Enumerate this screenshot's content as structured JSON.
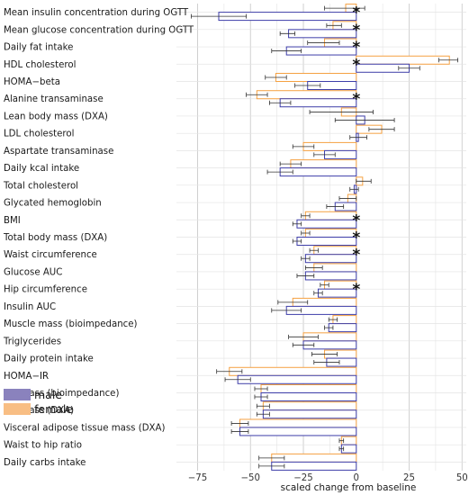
{
  "chart_data": {
    "type": "bar",
    "orientation": "horizontal",
    "xlabel": "scaled change from baseline",
    "xlim": [
      -85,
      52
    ],
    "xticks": [
      -75,
      -50,
      -25,
      0,
      25,
      50
    ],
    "xtick_labels": [
      "−75",
      "−50",
      "−25",
      "0",
      "25",
      "50"
    ],
    "grid": true,
    "significance_marker": "*",
    "legend": {
      "placement": "bottom-left"
    },
    "series": [
      {
        "name": "male",
        "color": "#3d3da8",
        "fill": "#ffffff"
      },
      {
        "name": "female",
        "color": "#f5a142",
        "fill": "#ffffff"
      }
    ],
    "categories": [
      {
        "label": "Mean insulin concentration during OGTT",
        "female": -5,
        "female_err": [
          -15,
          4
        ],
        "male": -65,
        "male_err": [
          -78,
          -52
        ],
        "sig": true
      },
      {
        "label": "Mean glucose concentration during OGTT",
        "female": -11,
        "female_err": [
          -14,
          -7
        ],
        "male": -32,
        "male_err": [
          -36,
          -29
        ],
        "sig": true
      },
      {
        "label": "Daily fat intake",
        "female": -15,
        "female_err": [
          -23,
          -8
        ],
        "male": -33,
        "male_err": [
          -40,
          -26
        ],
        "sig": true
      },
      {
        "label": "HDL cholesterol",
        "female": 44,
        "female_err": [
          39,
          48
        ],
        "male": 25,
        "male_err": [
          20,
          30
        ],
        "sig": true
      },
      {
        "label": "HOMA−beta",
        "female": -38,
        "female_err": [
          -43,
          -33
        ],
        "male": -23,
        "male_err": [
          -29,
          -17
        ],
        "sig": false
      },
      {
        "label": "Alanine transaminase",
        "female": -47,
        "female_err": [
          -52,
          -42
        ],
        "male": -36,
        "male_err": [
          -41,
          -31
        ],
        "sig": true
      },
      {
        "label": "Lean body mass (DXA)",
        "female": -7,
        "female_err": [
          -22,
          8
        ],
        "male": 4,
        "male_err": [
          -10,
          18
        ],
        "sig": false
      },
      {
        "label": "LDL cholesterol",
        "female": 12,
        "female_err": [
          6,
          18
        ],
        "male": 1,
        "male_err": [
          -3,
          5
        ],
        "sig": false
      },
      {
        "label": "Aspartate transaminase",
        "female": -25,
        "female_err": [
          -30,
          -20
        ],
        "male": -15,
        "male_err": [
          -20,
          -10
        ],
        "sig": false
      },
      {
        "label": "Daily kcal intake",
        "female": -31,
        "female_err": [
          -36,
          -26
        ],
        "male": -36,
        "male_err": [
          -42,
          -30
        ],
        "sig": false
      },
      {
        "label": "Total cholesterol",
        "female": 3,
        "female_err": [
          0,
          7
        ],
        "male": -1,
        "male_err": [
          -3,
          1
        ],
        "sig": false
      },
      {
        "label": "Glycated hemoglobin",
        "female": -4,
        "female_err": [
          -8,
          0
        ],
        "male": -10,
        "male_err": [
          -14,
          -6
        ],
        "sig": false
      },
      {
        "label": "BMI",
        "female": -24,
        "female_err": [
          -26,
          -22
        ],
        "male": -28,
        "male_err": [
          -30,
          -26
        ],
        "sig": true
      },
      {
        "label": "Total body mass (DXA)",
        "female": -24,
        "female_err": [
          -26,
          -22
        ],
        "male": -28,
        "male_err": [
          -30,
          -26
        ],
        "sig": true
      },
      {
        "label": "Waist circumference",
        "female": -20,
        "female_err": [
          -22,
          -18
        ],
        "male": -24,
        "male_err": [
          -26,
          -22
        ],
        "sig": true
      },
      {
        "label": "Glucose AUC",
        "female": -20,
        "female_err": [
          -24,
          -16
        ],
        "male": -24,
        "male_err": [
          -28,
          -20
        ],
        "sig": false
      },
      {
        "label": "Hip circumference",
        "female": -15,
        "female_err": [
          -17,
          -13
        ],
        "male": -18,
        "male_err": [
          -20,
          -16
        ],
        "sig": true
      },
      {
        "label": "Insulin AUC",
        "female": -30,
        "female_err": [
          -37,
          -23
        ],
        "male": -33,
        "male_err": [
          -40,
          -26
        ],
        "sig": false
      },
      {
        "label": "Muscle mass (bioimpedance)",
        "female": -11,
        "female_err": [
          -13,
          -9
        ],
        "male": -13,
        "male_err": [
          -15,
          -11
        ],
        "sig": false
      },
      {
        "label": "Triglycerides",
        "female": -25,
        "female_err": [
          -32,
          -18
        ],
        "male": -25,
        "male_err": [
          -30,
          -20
        ],
        "sig": false
      },
      {
        "label": "Daily protein intake",
        "female": -15,
        "female_err": [
          -21,
          -9
        ],
        "male": -14,
        "male_err": [
          -20,
          -8
        ],
        "sig": false
      },
      {
        "label": "HOMA−IR",
        "female": -60,
        "female_err": [
          -66,
          -54
        ],
        "male": -56,
        "male_err": [
          -62,
          -50
        ],
        "sig": false
      },
      {
        "label": "Fat mass (bioimpedance)",
        "female": -45,
        "female_err": [
          -48,
          -42
        ],
        "male": -45,
        "male_err": [
          -48,
          -42
        ],
        "sig": false
      },
      {
        "label": "Fat mass (DXA)",
        "female": -44,
        "female_err": [
          -47,
          -41
        ],
        "male": -44,
        "male_err": [
          -47,
          -41
        ],
        "sig": false
      },
      {
        "label": "Visceral adipose tissue mass (DXA)",
        "female": -55,
        "female_err": [
          -59,
          -51
        ],
        "male": -55,
        "male_err": [
          -59,
          -51
        ],
        "sig": false
      },
      {
        "label": "Waist to hip ratio",
        "female": -7,
        "female_err": [
          -8,
          -6
        ],
        "male": -7,
        "male_err": [
          -8,
          -6
        ],
        "sig": false
      },
      {
        "label": "Daily carbs intake",
        "female": -40,
        "female_err": [
          -46,
          -34
        ],
        "male": -40,
        "male_err": [
          -46,
          -34
        ],
        "sig": false
      }
    ]
  }
}
